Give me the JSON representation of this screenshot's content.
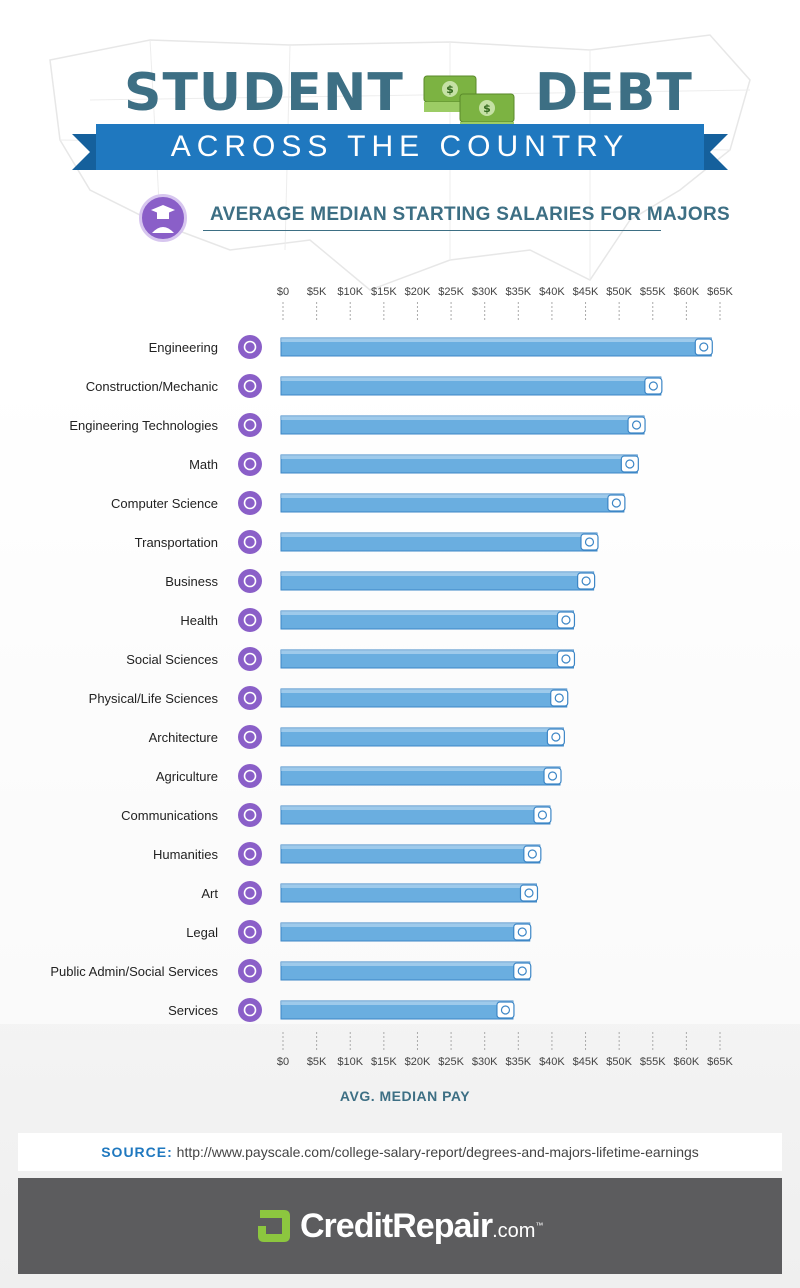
{
  "header": {
    "title_left": "STUDENT",
    "title_right": "DEBT",
    "ribbon": "ACROSS THE COUNTRY",
    "subtitle": "AVERAGE MEDIAN STARTING SALARIES FOR MAJORS"
  },
  "chart_data": {
    "type": "bar",
    "orientation": "horizontal",
    "xlabel": "AVG. MEDIAN PAY",
    "xlim": [
      0,
      65000
    ],
    "ticks": [
      "$0",
      "$5K",
      "$10K",
      "$15K",
      "$20K",
      "$25K",
      "$30K",
      "$35K",
      "$40K",
      "$45K",
      "$50K",
      "$55K",
      "$60K",
      "$65K"
    ],
    "categories": [
      "Engineering",
      "Construction/Mechanic",
      "Engineering Technologies",
      "Math",
      "Computer Science",
      "Transportation",
      "Business",
      "Health",
      "Social Sciences",
      "Physical/Life Sciences",
      "Architecture",
      "Agriculture",
      "Communications",
      "Humanities",
      "Art",
      "Legal",
      "Public Admin/Social Services",
      "Services"
    ],
    "values": [
      64000,
      56500,
      54000,
      53000,
      51000,
      47000,
      46500,
      43500,
      43500,
      42500,
      42000,
      41500,
      40000,
      38500,
      38000,
      37000,
      37000,
      34500
    ],
    "icons": [
      "camera-icon",
      "wrench-icon",
      "gear-icon",
      "protractor-icon",
      "monitor-icon",
      "train-icon",
      "envelope-icon",
      "heart-icon",
      "head-icon",
      "test-tube-icon",
      "building-icon",
      "wheat-icon",
      "chat-bubble-icon",
      "person-icon",
      "paintbrush-icon",
      "gavel-icon",
      "courthouse-icon",
      "shopping-cart-icon"
    ],
    "bar_color": "#6aaee0",
    "bar_edge_color": "#3c86c6",
    "icon_color": "#8a5fc8",
    "grid": false
  },
  "source": {
    "label": "SOURCE:",
    "text": "http://www.payscale.com/college-salary-report/degrees-and-majors-lifetime-earnings"
  },
  "footer": {
    "brand": "CreditRepair",
    "suffix": ".com",
    "tm": "™"
  }
}
